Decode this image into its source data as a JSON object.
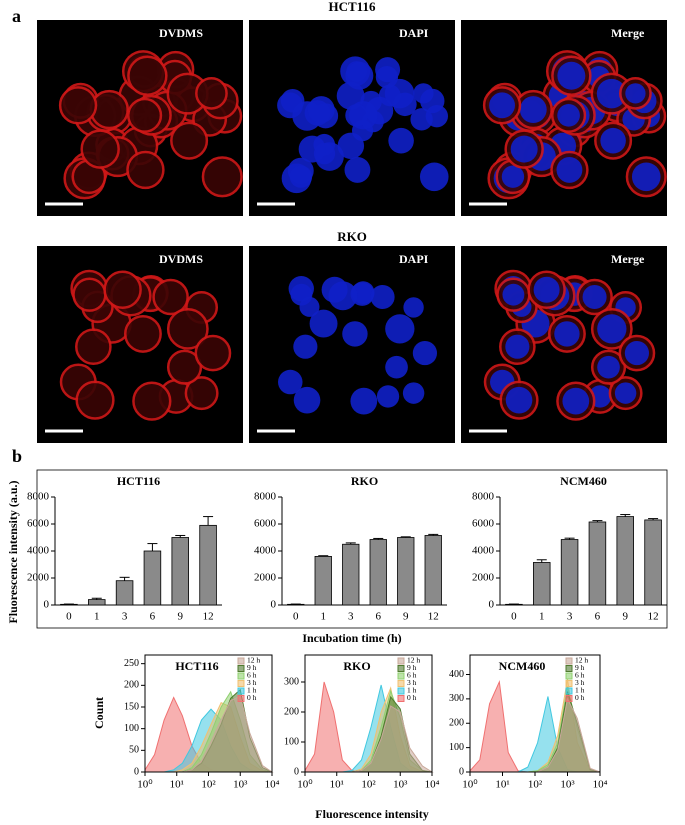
{
  "panel_a": {
    "label": "a",
    "groups": [
      {
        "title": "HCT116",
        "images": [
          "DVDMS",
          "DAPI",
          "Merge"
        ]
      },
      {
        "title": "RKO",
        "images": [
          "DVDMS",
          "DAPI",
          "Merge"
        ]
      }
    ]
  },
  "panel_b_label": "b",
  "bar_y_label": "Fluorescence intensity (a.u.)",
  "bar_x_label": "Incubation time (h)",
  "hist_y_label": "Count",
  "hist_x_label": "Fluorescence intensity",
  "chart_data": [
    {
      "type": "bar",
      "title": "HCT116",
      "categories": [
        "0",
        "1",
        "3",
        "6",
        "9",
        "12"
      ],
      "values": [
        50,
        400,
        1800,
        4000,
        5000,
        5900
      ],
      "errors": [
        20,
        100,
        250,
        550,
        150,
        650
      ],
      "color": "#8a8a8a",
      "ylim": [
        0,
        8000
      ],
      "yticks": [
        0,
        2000,
        4000,
        6000,
        8000
      ]
    },
    {
      "type": "bar",
      "title": "RKO",
      "categories": [
        "0",
        "1",
        "3",
        "6",
        "9",
        "12"
      ],
      "values": [
        50,
        3600,
        4500,
        4850,
        5000,
        5150
      ],
      "errors": [
        20,
        50,
        100,
        80,
        50,
        80
      ],
      "color": "#8a8a8a",
      "ylim": [
        0,
        8000
      ],
      "yticks": [
        0,
        2000,
        4000,
        6000,
        8000
      ]
    },
    {
      "type": "bar",
      "title": "NCM460",
      "categories": [
        "0",
        "1",
        "3",
        "6",
        "9",
        "12"
      ],
      "values": [
        50,
        3150,
        4850,
        6150,
        6550,
        6300
      ],
      "errors": [
        20,
        200,
        100,
        100,
        150,
        100
      ],
      "color": "#8a8a8a",
      "ylim": [
        0,
        8000
      ],
      "yticks": [
        0,
        2000,
        4000,
        6000,
        8000
      ]
    },
    {
      "type": "area",
      "title": "HCT116",
      "log_x": true,
      "x": [
        1,
        2,
        4,
        8,
        15,
        30,
        60,
        120,
        250,
        500,
        1000,
        2000,
        5000,
        10000
      ],
      "series": [
        {
          "name": "12 h",
          "color": "#c8a89a",
          "values": [
            0,
            0,
            0,
            0,
            0,
            5,
            25,
            70,
            120,
            165,
            175,
            90,
            15,
            0
          ]
        },
        {
          "name": "9 h",
          "color": "#4f7a2e",
          "values": [
            0,
            0,
            0,
            0,
            0,
            5,
            20,
            60,
            110,
            170,
            190,
            80,
            10,
            0
          ]
        },
        {
          "name": "6 h",
          "color": "#90d070",
          "values": [
            0,
            0,
            0,
            0,
            0,
            10,
            40,
            90,
            150,
            185,
            120,
            40,
            5,
            0
          ]
        },
        {
          "name": "3 h",
          "color": "#f0c070",
          "values": [
            0,
            0,
            0,
            0,
            5,
            20,
            60,
            110,
            160,
            150,
            80,
            20,
            2,
            0
          ]
        },
        {
          "name": "1 h",
          "color": "#40c8e0",
          "values": [
            0,
            0,
            0,
            5,
            20,
            60,
            120,
            145,
            120,
            60,
            20,
            5,
            0,
            0
          ]
        },
        {
          "name": "0 h",
          "color": "#f07070",
          "values": [
            5,
            40,
            120,
            172,
            130,
            60,
            20,
            5,
            0,
            0,
            0,
            0,
            0,
            0
          ]
        }
      ],
      "xlim": [
        1,
        10000
      ],
      "xticks": [
        {
          "value": 1,
          "label": "10⁰"
        },
        {
          "value": 10,
          "label": "10¹"
        },
        {
          "value": 100,
          "label": "10²"
        },
        {
          "value": 1000,
          "label": "10³"
        },
        {
          "value": 10000,
          "label": "10⁴"
        }
      ],
      "ylim": [
        0,
        270
      ],
      "yticks": [
        0,
        50,
        100,
        150,
        200,
        250
      ]
    },
    {
      "type": "area",
      "title": "RKO",
      "log_x": true,
      "x": [
        1,
        2,
        4,
        8,
        15,
        30,
        60,
        120,
        250,
        500,
        1000,
        2000,
        5000,
        10000
      ],
      "series": [
        {
          "name": "12 h",
          "color": "#c8a89a",
          "values": [
            0,
            0,
            0,
            0,
            0,
            0,
            5,
            30,
            110,
            220,
            200,
            80,
            20,
            0
          ]
        },
        {
          "name": "9 h",
          "color": "#4f7a2e",
          "values": [
            0,
            0,
            0,
            0,
            0,
            0,
            5,
            30,
            120,
            250,
            210,
            60,
            5,
            0
          ]
        },
        {
          "name": "6 h",
          "color": "#90d070",
          "values": [
            0,
            0,
            0,
            0,
            0,
            0,
            5,
            40,
            150,
            270,
            180,
            40,
            5,
            0
          ]
        },
        {
          "name": "3 h",
          "color": "#f0c070",
          "values": [
            0,
            0,
            0,
            0,
            0,
            0,
            10,
            60,
            200,
            280,
            120,
            20,
            0,
            0
          ]
        },
        {
          "name": "1 h",
          "color": "#40c8e0",
          "values": [
            0,
            0,
            0,
            0,
            0,
            5,
            40,
            150,
            290,
            150,
            30,
            5,
            0,
            0
          ]
        },
        {
          "name": "0 h",
          "color": "#f07070",
          "values": [
            5,
            60,
            300,
            200,
            40,
            5,
            0,
            0,
            0,
            0,
            0,
            0,
            0,
            0
          ]
        }
      ],
      "xlim": [
        1,
        10000
      ],
      "xticks": [
        {
          "value": 1,
          "label": "10⁰"
        },
        {
          "value": 10,
          "label": "10¹"
        },
        {
          "value": 100,
          "label": "10²"
        },
        {
          "value": 1000,
          "label": "10³"
        },
        {
          "value": 10000,
          "label": "10⁴"
        }
      ],
      "ylim": [
        0,
        390
      ],
      "yticks": [
        0,
        100,
        200,
        300
      ]
    },
    {
      "type": "area",
      "title": "NCM460",
      "log_x": true,
      "x": [
        1,
        2,
        4,
        8,
        15,
        30,
        60,
        120,
        250,
        500,
        1000,
        2000,
        5000,
        10000
      ],
      "series": [
        {
          "name": "12 h",
          "color": "#c8a89a",
          "values": [
            0,
            0,
            0,
            0,
            0,
            0,
            0,
            0,
            20,
            90,
            300,
            220,
            15,
            0
          ]
        },
        {
          "name": "9 h",
          "color": "#4f7a2e",
          "values": [
            0,
            0,
            0,
            0,
            0,
            0,
            0,
            0,
            20,
            100,
            330,
            200,
            10,
            0
          ]
        },
        {
          "name": "6 h",
          "color": "#90d070",
          "values": [
            0,
            0,
            0,
            0,
            0,
            0,
            0,
            5,
            30,
            120,
            350,
            180,
            10,
            0
          ]
        },
        {
          "name": "3 h",
          "color": "#f0c070",
          "values": [
            0,
            0,
            0,
            0,
            0,
            0,
            0,
            5,
            40,
            150,
            380,
            120,
            5,
            0
          ]
        },
        {
          "name": "1 h",
          "color": "#40c8e0",
          "values": [
            0,
            0,
            0,
            0,
            0,
            0,
            20,
            120,
            310,
            100,
            10,
            0,
            0,
            0
          ]
        },
        {
          "name": "0 h",
          "color": "#f07070",
          "values": [
            5,
            50,
            280,
            370,
            80,
            5,
            0,
            0,
            0,
            0,
            0,
            0,
            0,
            0
          ]
        }
      ],
      "xlim": [
        1,
        10000
      ],
      "xticks": [
        {
          "value": 1,
          "label": "10⁰"
        },
        {
          "value": 10,
          "label": "10¹"
        },
        {
          "value": 100,
          "label": "10²"
        },
        {
          "value": 1000,
          "label": "10³"
        },
        {
          "value": 10000,
          "label": "10⁴"
        }
      ],
      "ylim": [
        0,
        480
      ],
      "yticks": [
        0,
        100,
        200,
        300,
        400
      ]
    }
  ]
}
